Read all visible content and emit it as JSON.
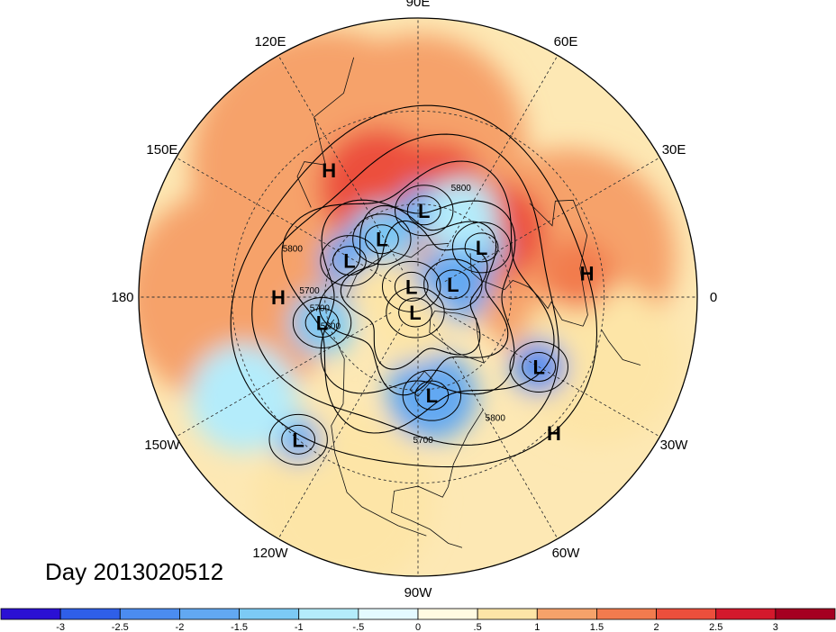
{
  "title": "Day 2013020512",
  "longitude_labels": [
    {
      "text": "90E",
      "lon": 90
    },
    {
      "text": "60E",
      "lon": 60
    },
    {
      "text": "30E",
      "lon": 30
    },
    {
      "text": "0",
      "lon": 0
    },
    {
      "text": "30W",
      "lon": -30
    },
    {
      "text": "60W",
      "lon": -60
    },
    {
      "text": "90W",
      "lon": -90
    },
    {
      "text": "120W",
      "lon": -120
    },
    {
      "text": "150W",
      "lon": -150
    },
    {
      "text": "180",
      "lon": 180
    },
    {
      "text": "150E",
      "lon": 150
    },
    {
      "text": "120E",
      "lon": 120
    }
  ],
  "pressure_systems": [
    {
      "type": "H",
      "lon": 125,
      "lat": 40
    },
    {
      "type": "H",
      "lon": 180,
      "lat": 45
    },
    {
      "type": "H",
      "lon": 8,
      "lat": 35
    },
    {
      "type": "H",
      "lon": -45,
      "lat": 28
    },
    {
      "type": "L",
      "lon": 86,
      "lat": 62
    },
    {
      "type": "L",
      "lon": 122,
      "lat": 68
    },
    {
      "type": "L",
      "lon": 152,
      "lat": 65
    },
    {
      "type": "L",
      "lon": 122,
      "lat": 86
    },
    {
      "type": "L",
      "lon": 38,
      "lat": 64
    },
    {
      "type": "L",
      "lon": 20,
      "lat": 78
    },
    {
      "type": "L",
      "lon": -100,
      "lat": 85
    },
    {
      "type": "L",
      "lon": -165,
      "lat": 58
    },
    {
      "type": "L",
      "lon": -82,
      "lat": 58
    },
    {
      "type": "L",
      "lon": -30,
      "lat": 45
    },
    {
      "type": "L",
      "lon": -130,
      "lat": 30
    }
  ],
  "contour_labels": [
    {
      "text": "5800",
      "lon": 68,
      "lat": 53
    },
    {
      "text": "5800",
      "lon": 160,
      "lat": 47
    },
    {
      "text": "5700",
      "lon": 178,
      "lat": 55
    },
    {
      "text": "5700",
      "lon": 188,
      "lat": 58
    },
    {
      "text": "5600",
      "lon": 200,
      "lat": 60
    },
    {
      "text": "5700",
      "lon": -88,
      "lat": 43
    },
    {
      "text": "5800",
      "lon": -58,
      "lat": 43
    }
  ],
  "anomaly_areas": [
    {
      "value": 1.3,
      "lon": 125,
      "lat": 38,
      "r": 150
    },
    {
      "value": 1.2,
      "lon": 90,
      "lat": 40,
      "r": 120
    },
    {
      "value": 1.2,
      "lon": 15,
      "lat": 40,
      "r": 120
    },
    {
      "value": 1.0,
      "lon": 180,
      "lat": 30,
      "r": 120
    },
    {
      "value": 0.9,
      "lon": -20,
      "lat": 28,
      "r": 90
    },
    {
      "value": 0.7,
      "lon": -110,
      "lat": 20,
      "r": 100
    },
    {
      "value": 2.3,
      "lon": 110,
      "lat": 52,
      "r": 65
    },
    {
      "value": 2.2,
      "lon": 80,
      "lat": 55,
      "r": 55
    },
    {
      "value": 2.2,
      "lon": 40,
      "lat": 57,
      "r": 55
    },
    {
      "value": 1.8,
      "lon": 8,
      "lat": 38,
      "r": 40
    },
    {
      "value": -1.5,
      "lon": 122,
      "lat": 68,
      "r": 38
    },
    {
      "value": -1.8,
      "lon": 152,
      "lat": 65,
      "r": 32
    },
    {
      "value": -1.7,
      "lon": 86,
      "lat": 62,
      "r": 28
    },
    {
      "value": -1.5,
      "lon": 38,
      "lat": 64,
      "r": 26
    },
    {
      "value": -1.6,
      "lon": 20,
      "lat": 78,
      "r": 42
    },
    {
      "value": -1.3,
      "lon": -165,
      "lat": 58,
      "r": 36
    },
    {
      "value": -1.8,
      "lon": -82,
      "lat": 58,
      "r": 50
    },
    {
      "value": -2.2,
      "lon": -30,
      "lat": 45,
      "r": 30
    },
    {
      "value": -1.6,
      "lon": -130,
      "lat": 30,
      "r": 25
    },
    {
      "value": -0.7,
      "lon": -150,
      "lat": 25,
      "r": 60
    },
    {
      "value": -1.0,
      "lon": 62,
      "lat": 60,
      "r": 40
    },
    {
      "value": 0.8,
      "lon": -100,
      "lat": 80,
      "r": 40
    },
    {
      "value": 0.9,
      "lon": 170,
      "lat": 78,
      "r": 35
    }
  ],
  "colorbar": {
    "bins": [
      {
        "color": "#2b10d4"
      },
      {
        "color": "#2f5fe8"
      },
      {
        "color": "#4b8cf0"
      },
      {
        "color": "#62a8f2"
      },
      {
        "color": "#7ccaf5"
      },
      {
        "color": "#b4ecfb"
      },
      {
        "color": "#e4faff"
      },
      {
        "color": "#fffbe2"
      },
      {
        "color": "#fde5a7"
      },
      {
        "color": "#f6a26a"
      },
      {
        "color": "#f27b4e"
      },
      {
        "color": "#ec4f3c"
      },
      {
        "color": "#d3192c"
      },
      {
        "color": "#a50021"
      }
    ],
    "ticks": [
      "-3",
      "-2.5",
      "-2",
      "-1.5",
      "-1",
      "-.5",
      "0",
      ".5",
      "1",
      "1.5",
      "2",
      "2.5",
      "3"
    ],
    "levels": [
      -3,
      -2.5,
      -2,
      -1.5,
      -1,
      -0.5,
      0,
      0.5,
      1,
      1.5,
      2,
      2.5,
      3
    ]
  }
}
